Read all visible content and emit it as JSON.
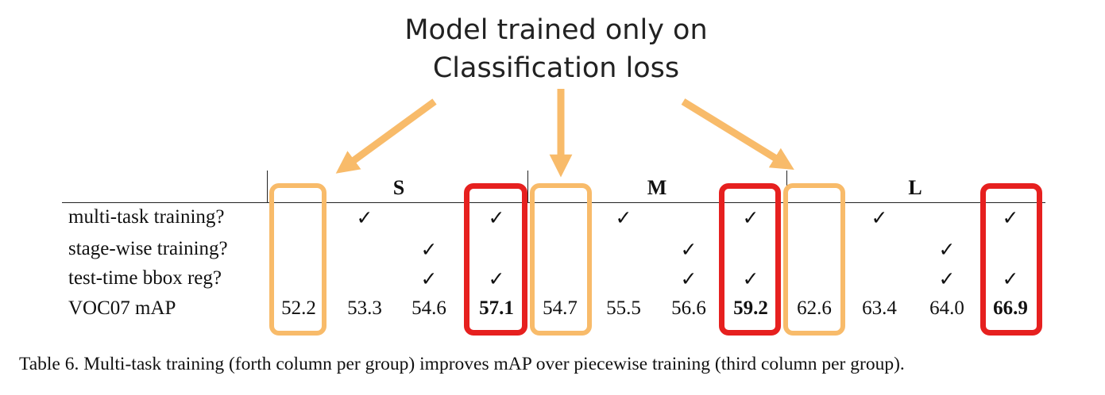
{
  "annotation": {
    "line1": "Model trained only on",
    "line2": "Classification loss",
    "arrow_color": "#f8bb6a"
  },
  "table": {
    "groups": [
      "S",
      "M",
      "L"
    ],
    "rows": [
      {
        "label": "multi-task training?",
        "cells": [
          "",
          "✓",
          "",
          "✓",
          "",
          "✓",
          "",
          "✓",
          "",
          "✓",
          "",
          "✓"
        ]
      },
      {
        "label": "stage-wise training?",
        "cells": [
          "",
          "",
          "✓",
          "",
          "",
          "",
          "✓",
          "",
          "",
          "",
          "✓",
          ""
        ]
      },
      {
        "label": "test-time bbox reg?",
        "cells": [
          "",
          "",
          "✓",
          "✓",
          "",
          "",
          "✓",
          "✓",
          "",
          "",
          "✓",
          "✓"
        ]
      },
      {
        "label": "VOC07 mAP",
        "cells": [
          "52.2",
          "53.3",
          "54.6",
          "57.1",
          "54.7",
          "55.5",
          "56.6",
          "59.2",
          "62.6",
          "63.4",
          "64.0",
          "66.9"
        ]
      }
    ],
    "bold_values": [
      "57.1",
      "59.2",
      "66.9"
    ],
    "highlights": {
      "classification_only_color": "#f8bb6a",
      "multi_task_color": "#e6201f"
    }
  },
  "caption": "Table 6. Multi-task training (forth column per group) improves mAP over piecewise training (third column per group)."
}
